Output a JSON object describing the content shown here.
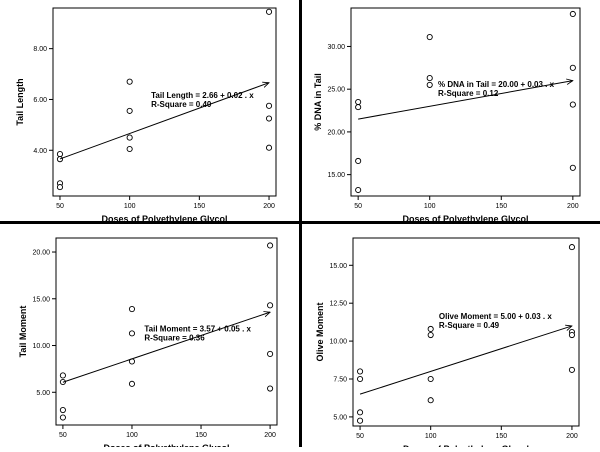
{
  "chart_data": [
    {
      "type": "scatter",
      "xlabel": "Doses of Polyethylene Glycol",
      "ylabel": "Tail Length",
      "xticks": [
        50,
        100,
        150,
        200
      ],
      "yticks": [
        4.0,
        6.0,
        8.0
      ],
      "ytick_labels": [
        "4.00",
        "6.00",
        "8.00"
      ],
      "xlim": [
        45,
        205
      ],
      "ylim": [
        2.2,
        9.6
      ],
      "points": [
        {
          "x": 50,
          "y": 3.85
        },
        {
          "x": 50,
          "y": 3.65
        },
        {
          "x": 50,
          "y": 2.7
        },
        {
          "x": 50,
          "y": 2.55
        },
        {
          "x": 100,
          "y": 6.7
        },
        {
          "x": 100,
          "y": 5.55
        },
        {
          "x": 100,
          "y": 4.5
        },
        {
          "x": 100,
          "y": 4.05
        },
        {
          "x": 200,
          "y": 9.45
        },
        {
          "x": 200,
          "y": 5.75
        },
        {
          "x": 200,
          "y": 5.25
        },
        {
          "x": 200,
          "y": 4.1
        }
      ],
      "fit": {
        "intercept": 2.66,
        "slope": 0.02
      },
      "annotation": {
        "equation": "Tail Length = 2.66 + 0.02 . x",
        "rsquare": "R-Square = 0.40"
      }
    },
    {
      "type": "scatter",
      "xlabel": "Doses of Polyethylene Glycol",
      "ylabel": "% DNA in Tail",
      "xticks": [
        50,
        100,
        150,
        200
      ],
      "yticks": [
        15.0,
        20.0,
        25.0,
        30.0
      ],
      "ytick_labels": [
        "15.00",
        "20.00",
        "25.00",
        "30.00"
      ],
      "xlim": [
        45,
        205
      ],
      "ylim": [
        12.5,
        34.5
      ],
      "points": [
        {
          "x": 50,
          "y": 23.5
        },
        {
          "x": 50,
          "y": 22.9
        },
        {
          "x": 50,
          "y": 16.6
        },
        {
          "x": 50,
          "y": 13.2
        },
        {
          "x": 100,
          "y": 31.1
        },
        {
          "x": 100,
          "y": 26.3
        },
        {
          "x": 100,
          "y": 25.5
        },
        {
          "x": 200,
          "y": 33.8
        },
        {
          "x": 200,
          "y": 27.5
        },
        {
          "x": 200,
          "y": 23.2
        },
        {
          "x": 200,
          "y": 15.8
        }
      ],
      "fit": {
        "intercept": 20.0,
        "slope": 0.03
      },
      "annotation": {
        "equation": "% DNA in Tail = 20.00 + 0.03 . x",
        "rsquare": "R-Square = 0.12"
      }
    },
    {
      "type": "scatter",
      "xlabel": "Doses of Polyethylene Glycol",
      "ylabel": "Tail Moment",
      "xticks": [
        50,
        100,
        150,
        200
      ],
      "yticks": [
        5.0,
        10.0,
        15.0,
        20.0
      ],
      "ytick_labels": [
        "5.00",
        "10.00",
        "15.00",
        "20.00"
      ],
      "xlim": [
        45,
        205
      ],
      "ylim": [
        1.5,
        21.5
      ],
      "points": [
        {
          "x": 50,
          "y": 6.8
        },
        {
          "x": 50,
          "y": 6.1
        },
        {
          "x": 50,
          "y": 3.1
        },
        {
          "x": 50,
          "y": 2.3
        },
        {
          "x": 100,
          "y": 13.9
        },
        {
          "x": 100,
          "y": 11.3
        },
        {
          "x": 100,
          "y": 8.3
        },
        {
          "x": 100,
          "y": 5.9
        },
        {
          "x": 200,
          "y": 20.7
        },
        {
          "x": 200,
          "y": 14.3
        },
        {
          "x": 200,
          "y": 9.1
        },
        {
          "x": 200,
          "y": 5.4
        }
      ],
      "fit": {
        "intercept": 3.57,
        "slope": 0.05
      },
      "annotation": {
        "equation": "Tail Moment = 3.57 + 0.05 . x",
        "rsquare": "R-Square = 0.36"
      }
    },
    {
      "type": "scatter",
      "xlabel": "Doses of Polyethylene Glycol",
      "ylabel": "Olive Moment",
      "xticks": [
        50,
        100,
        150,
        200
      ],
      "yticks": [
        5.0,
        7.5,
        10.0,
        12.5,
        15.0
      ],
      "ytick_labels": [
        "5.00",
        "7.50",
        "10.00",
        "12.50",
        "15.00"
      ],
      "xlim": [
        45,
        205
      ],
      "ylim": [
        4.4,
        16.8
      ],
      "points": [
        {
          "x": 50,
          "y": 8.0
        },
        {
          "x": 50,
          "y": 7.5
        },
        {
          "x": 50,
          "y": 5.3
        },
        {
          "x": 50,
          "y": 4.75
        },
        {
          "x": 100,
          "y": 10.8
        },
        {
          "x": 100,
          "y": 10.4
        },
        {
          "x": 100,
          "y": 7.5
        },
        {
          "x": 100,
          "y": 6.1
        },
        {
          "x": 200,
          "y": 16.2
        },
        {
          "x": 200,
          "y": 10.6
        },
        {
          "x": 200,
          "y": 10.4
        },
        {
          "x": 200,
          "y": 8.1
        }
      ],
      "fit": {
        "intercept": 5.0,
        "slope": 0.03
      },
      "annotation": {
        "equation": "Olive Moment = 5.00 + 0.03 . x",
        "rsquare": "R-Square = 0.49"
      }
    }
  ]
}
